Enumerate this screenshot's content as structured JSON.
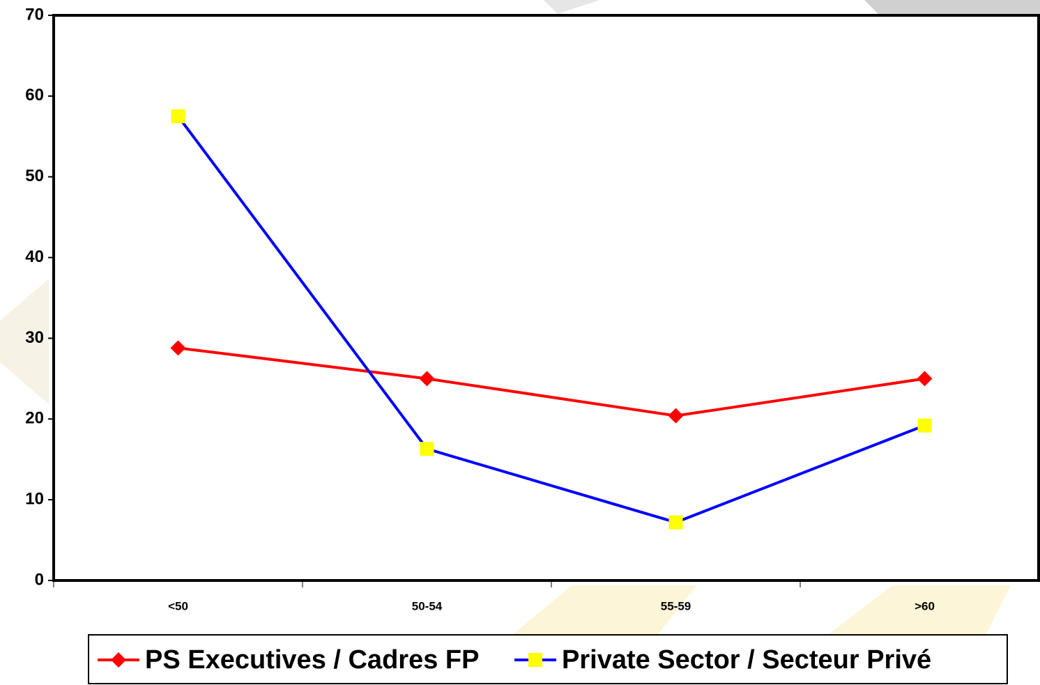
{
  "chart_data": {
    "type": "line",
    "categories": [
      "<50",
      "50-54",
      "55-59",
      ">60"
    ],
    "series": [
      {
        "name": "PS Executives / Cadres FP",
        "color": "#ff0000",
        "marker": "diamond",
        "values": [
          28.8,
          25,
          20.4,
          25
        ]
      },
      {
        "name": "Private Sector / Secteur Privé",
        "color": "#0000ff",
        "marker": "square",
        "marker_color": "#ffff00",
        "values": [
          57.5,
          16.3,
          7.2,
          19.2
        ]
      }
    ],
    "ylim": [
      0,
      70
    ],
    "yticks": [
      0,
      10,
      20,
      30,
      40,
      50,
      60,
      70
    ],
    "grid": false,
    "legend": "bottom"
  }
}
